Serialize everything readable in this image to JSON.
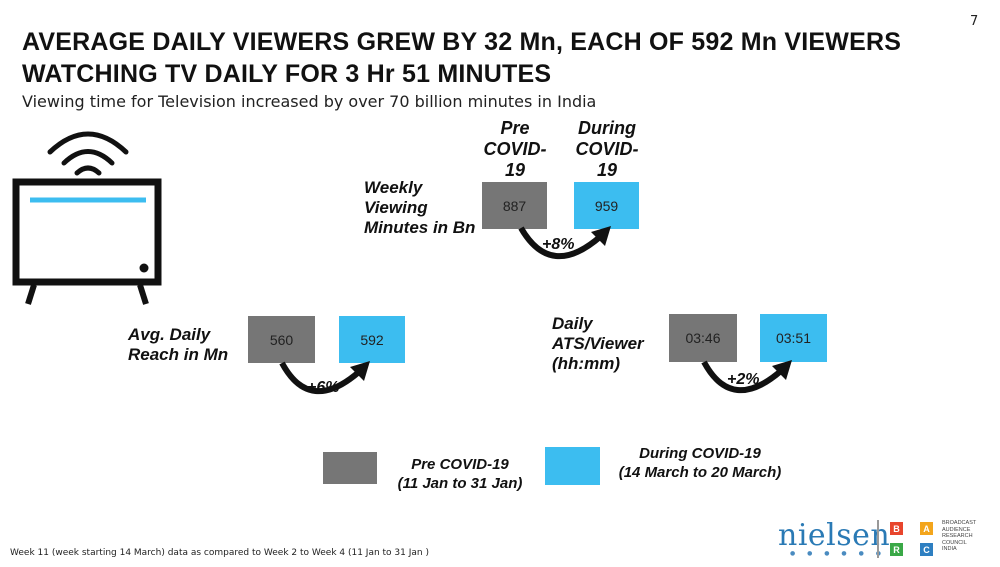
{
  "page_number": "7",
  "title": {
    "line1": "AVERAGE DAILY VIEWERS GREW BY 32 Mn, EACH OF 592 Mn VIEWERS",
    "line2": "WATCHING TV DAILY FOR 3 Hr 51 MINUTES"
  },
  "subtitle": "Viewing  time for Television increased by over 70 billion minutes in India",
  "column_headers": {
    "pre": [
      "Pre",
      "COVID-",
      "19"
    ],
    "during": [
      "During",
      "COVID-",
      "19"
    ]
  },
  "metrics": {
    "weekly": {
      "label": [
        "Weekly",
        "Viewing",
        "Minutes in Bn"
      ],
      "pre": "887",
      "during": "959",
      "change": "+8%"
    },
    "reach": {
      "label": [
        "Avg. Daily",
        "Reach in Mn"
      ],
      "pre": "560",
      "during": "592",
      "change": "+6%"
    },
    "ats": {
      "label": [
        "Daily",
        "ATS/Viewer",
        "(hh:mm)"
      ],
      "pre": "03:46",
      "during": "03:51",
      "change": "+2%"
    }
  },
  "legend": {
    "pre": [
      "Pre COVID-19",
      "(11 Jan to 31 Jan)"
    ],
    "during": [
      "During COVID-19",
      "(14 March to 20 March)"
    ]
  },
  "footnote": "Week 11 (week starting 14 March) data as compared to Week 2 to Week 4 (11 Jan to 31 Jan )",
  "logos": {
    "nielsen": "nielsen",
    "barc_letters": [
      "B",
      "A",
      "R",
      "C"
    ],
    "barc_text": [
      "BROADCAST",
      "AUDIENCE",
      "RESEARCH",
      "COUNCIL",
      "INDIA"
    ]
  },
  "colors": {
    "pre": "#767676",
    "during": "#3cbdf0",
    "tv_screen_line": "#3cbdf0",
    "barc_b": "#e8452c",
    "barc_a": "#f3a51c",
    "barc_r": "#3aa847",
    "barc_c": "#2e7fc1"
  },
  "icons": [
    "tv-icon",
    "wifi-signal-icon",
    "curved-arrow-icon"
  ]
}
